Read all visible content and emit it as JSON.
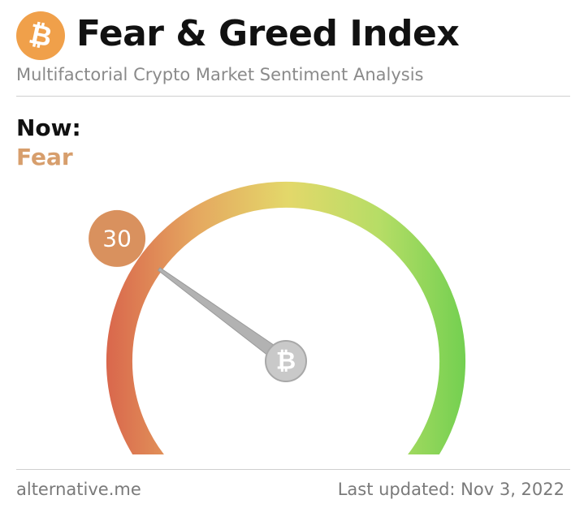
{
  "header": {
    "logo_symbol": "₿",
    "logo_icon": "bitcoin-icon",
    "title": "Fear & Greed Index",
    "subtitle": "Multifactorial Crypto Market Sentiment Analysis"
  },
  "status": {
    "now_label": "Now:",
    "classification": "Fear",
    "value": "30",
    "value_number": 30,
    "min": 0,
    "max": 100
  },
  "gauge": {
    "hub_symbol": "₿",
    "hub_icon": "bitcoin-icon"
  },
  "footer": {
    "source": "alternative.me",
    "last_updated": "Last updated: Nov 3, 2022"
  },
  "colors": {
    "logo": "#f0a04a",
    "fear_text": "#d79e6c",
    "badge": "#d9915e",
    "gauge_start": "#d9664c",
    "gauge_mid": "#e3d86a",
    "gauge_end": "#6fcf4f",
    "needle": "#b2b2b2"
  }
}
